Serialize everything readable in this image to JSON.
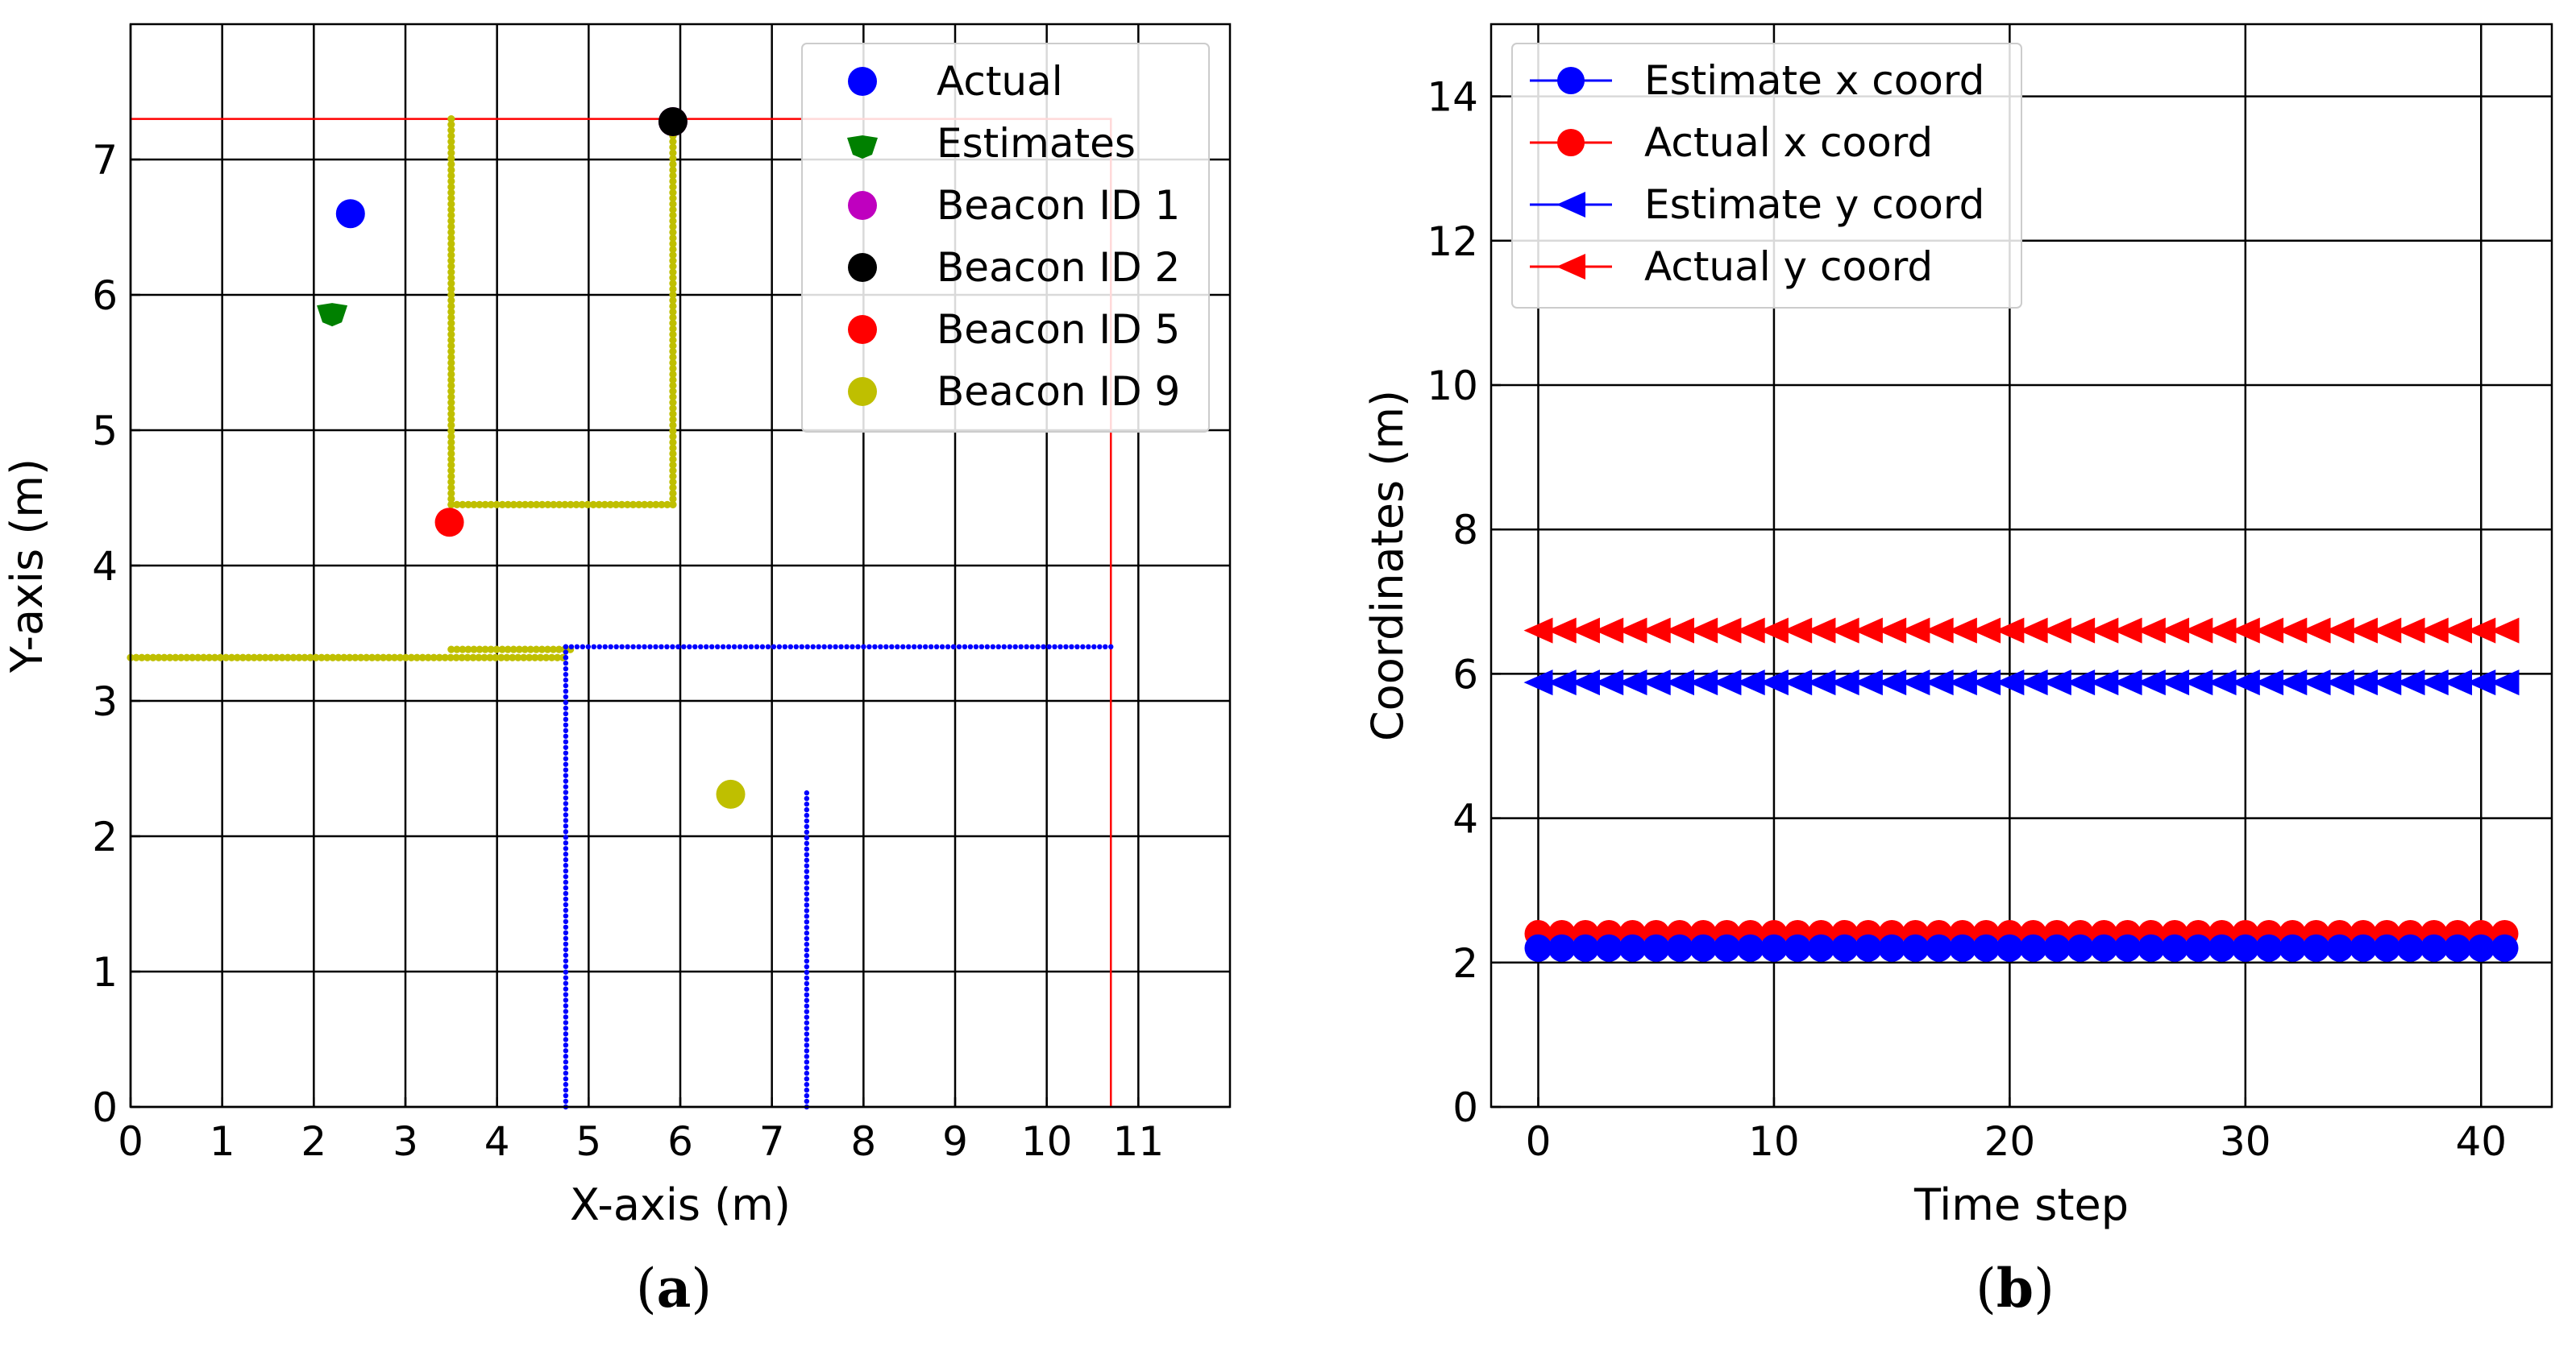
{
  "chart_data": [
    {
      "id": "a",
      "type": "scatter",
      "caption": {
        "open": "(",
        "letter": "a",
        "close": ")"
      },
      "xlabel": "X-axis (m)",
      "ylabel": "Y-axis (m)",
      "xlim": [
        0,
        12
      ],
      "ylim": [
        0,
        8
      ],
      "xticks": [
        0,
        1,
        2,
        3,
        4,
        5,
        6,
        7,
        8,
        9,
        10,
        11
      ],
      "yticks": [
        0,
        1,
        2,
        3,
        4,
        5,
        6,
        7
      ],
      "grid": true,
      "legend_position": "top-right",
      "legend": [
        {
          "label": "Actual",
          "color": "#0000ff"
        },
        {
          "label": "Estimates",
          "color": "#008000"
        },
        {
          "label": "Beacon ID 1",
          "color": "#bf00bf"
        },
        {
          "label": "Beacon ID 2",
          "color": "#000000"
        },
        {
          "label": "Beacon ID 5",
          "color": "#ff0000"
        },
        {
          "label": "Beacon ID 9",
          "color": "#bfbf00"
        }
      ],
      "points": [
        {
          "name": "Actual",
          "x": 2.4,
          "y": 6.6,
          "color": "#0000ff"
        },
        {
          "name": "Estimates",
          "x": 2.2,
          "y": 5.88,
          "color": "#008000"
        },
        {
          "name": "Beacon ID 1",
          "x": 5.92,
          "y": 7.28,
          "color": "#bf00bf"
        },
        {
          "name": "Beacon ID 2",
          "x": 5.92,
          "y": 7.28,
          "color": "#000000"
        },
        {
          "name": "Beacon ID 5",
          "x": 3.48,
          "y": 4.32,
          "color": "#ff0000"
        },
        {
          "name": "Beacon ID 9",
          "x": 6.55,
          "y": 2.31,
          "color": "#bfbf00"
        }
      ],
      "paths": [
        {
          "name": "beacon-5-walls",
          "color": "#ff0000",
          "style": "line",
          "points": [
            [
              0,
              7.3
            ],
            [
              10.7,
              7.3
            ],
            [
              10.7,
              0
            ]
          ]
        },
        {
          "name": "beacon-9-walls",
          "color": "#bfbf00",
          "style": "dotted",
          "points": [
            [
              3.5,
              7.3
            ],
            [
              3.5,
              4.45
            ],
            [
              5.92,
              4.45
            ],
            [
              5.92,
              7.3
            ]
          ]
        },
        {
          "name": "beacon-9-corridor",
          "color": "#bfbf00",
          "style": "dotted",
          "points": [
            [
              0,
              3.32
            ],
            [
              4.72,
              3.32
            ]
          ]
        },
        {
          "name": "beacon-9-corridor-2",
          "color": "#bfbf00",
          "style": "dotted",
          "points": [
            [
              3.5,
              3.38
            ],
            [
              4.8,
              3.38
            ]
          ]
        },
        {
          "name": "actual-corridor",
          "color": "#0000ff",
          "style": "dotted",
          "points": [
            [
              4.75,
              0
            ],
            [
              4.75,
              3.32
            ],
            [
              4.75,
              3.4
            ],
            [
              10.7,
              3.4
            ]
          ]
        },
        {
          "name": "actual-wall",
          "color": "#0000ff",
          "style": "dotted",
          "points": [
            [
              7.38,
              0
            ],
            [
              7.38,
              2.32
            ]
          ]
        }
      ]
    },
    {
      "id": "b",
      "type": "line",
      "caption": {
        "open": "(",
        "letter": "b",
        "close": ")"
      },
      "xlabel": "Time step",
      "ylabel": "Coordinates (m)",
      "xlim": [
        -2,
        43
      ],
      "ylim": [
        0,
        15
      ],
      "xticks": [
        0,
        10,
        20,
        30,
        40
      ],
      "yticks": [
        0,
        2,
        4,
        6,
        8,
        10,
        12,
        14
      ],
      "grid": true,
      "legend_position": "top-left",
      "x_start": 0,
      "x_end": 41,
      "series": [
        {
          "name": "Estimate x coord",
          "color": "#0000ff",
          "marker": "circle",
          "value": 2.2
        },
        {
          "name": "Actual x coord",
          "color": "#ff0000",
          "marker": "circle",
          "value": 2.4
        },
        {
          "name": "Estimate y coord",
          "color": "#0000ff",
          "marker": "triangle-left",
          "value": 5.88
        },
        {
          "name": "Actual y coord",
          "color": "#ff0000",
          "marker": "triangle-left",
          "value": 6.6
        }
      ]
    }
  ]
}
